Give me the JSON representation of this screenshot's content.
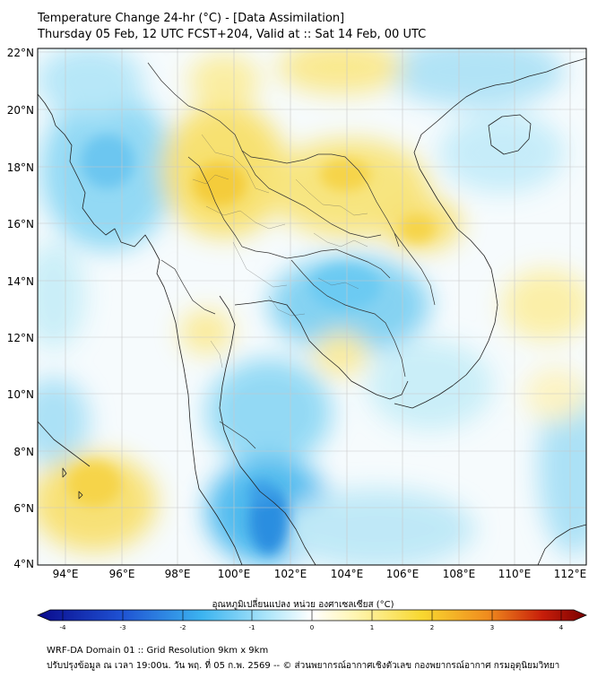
{
  "header": {
    "title_line1": "Temperature Change 24-hr (°C) - [Data Assimilation]",
    "title_line2": "Thursday 05 Feb, 12 UTC FCST+204, Valid at :: Sat 14 Feb, 00 UTC"
  },
  "map": {
    "variable": "24-hr temperature change",
    "units": "°C",
    "lat_labels": [
      "22°N",
      "20°N",
      "18°N",
      "16°N",
      "14°N",
      "12°N",
      "10°N",
      "8°N",
      "6°N",
      "4°N"
    ],
    "lon_labels": [
      "94°E",
      "96°E",
      "98°E",
      "100°E",
      "102°E",
      "104°E",
      "106°E",
      "108°E",
      "110°E",
      "112°E"
    ],
    "lat_range": [
      4,
      22
    ],
    "lon_range": [
      93,
      112.6
    ]
  },
  "colorbar": {
    "title": "อุณหภูมิเปลี่ยนแปลง หน่วย องศาเซลเซียส (°C)",
    "ticks": [
      "-4",
      "-3",
      "-2",
      "-1",
      "0",
      "1",
      "2",
      "3",
      "4"
    ],
    "range": [
      -4,
      4
    ],
    "colors": {
      "cold_extreme": "#0a0a8c",
      "cold": "#1e64dc",
      "cool": "#3cc0f0",
      "neutral": "#ffffff",
      "warm": "#f8e060",
      "hot": "#f08c1e",
      "hot_extreme": "#7a0000"
    }
  },
  "footer": {
    "line1": "WRF-DA Domain 01 :: Grid Resolution 9km x 9km",
    "line2": "ปรับปรุงข้อมูล ณ เวลา 19:00น. วัน พฤ. ที่ 05 ก.พ. 2569 -- © ส่วนพยากรณ์อากาศเชิงตัวเลข กองพยากรณ์อากาศ กรมอุตุนิยมวิทยา"
  }
}
